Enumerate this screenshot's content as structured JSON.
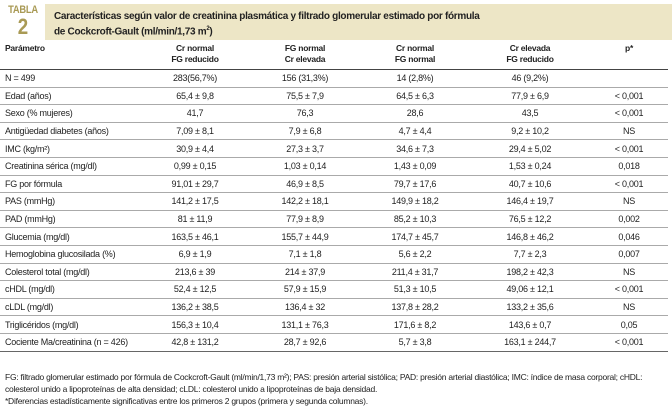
{
  "table_label": {
    "word": "TABLA",
    "number": "2"
  },
  "title": {
    "line1": "Características según valor de creatinina plasmática y filtrado glomerular estimado por fórmula",
    "line2": "de Cockcroft-Gault (ml/min/1,73 m",
    "line2_sup": "2",
    "line2_end": ")"
  },
  "columns": [
    {
      "l1": "Parámetro",
      "l2": ""
    },
    {
      "l1": "Cr normal",
      "l2": "FG reducido"
    },
    {
      "l1": "FG normal",
      "l2": "Cr elevada"
    },
    {
      "l1": "Cr normal",
      "l2": "FG normal"
    },
    {
      "l1": "Cr elevada",
      "l2": "FG reducido"
    },
    {
      "l1": "p*",
      "l2": ""
    }
  ],
  "rows": [
    [
      "N  = 499",
      "283(56,7%)",
      "156 (31,3%)",
      "14 (2,8%)",
      "46 (9,2%)",
      ""
    ],
    [
      "Edad (años)",
      "65,4 ± 9,8",
      "75,5 ± 7,9",
      "64,5 ± 6,3",
      "77,9 ± 6,9",
      "< 0,001"
    ],
    [
      "Sexo (% mujeres)",
      "41,7",
      "76,3",
      "28,6",
      "43,5",
      "< 0,001"
    ],
    [
      "Antigüedad diabetes (años)",
      "7,09 ± 8,1",
      "7,9 ± 6,8",
      "4,7 ± 4,4",
      "9,2 ± 10,2",
      "NS"
    ],
    [
      "IMC (kg/m²)",
      "30,9 ± 4,4",
      "27,3 ± 3,7",
      "34,6 ± 7,3",
      "29,4 ± 5,02",
      "< 0,001"
    ],
    [
      "Creatinina sérica (mg/dl)",
      "0,99 ± 0,15",
      "1,03 ± 0,14",
      "1,43 ± 0,09",
      "1,53 ± 0,24",
      "0,018"
    ],
    [
      "FG por fórmula",
      "91,01 ± 29,7",
      "46,9 ± 8,5",
      "79,7 ± 17,6",
      "40,7 ± 10,6",
      "< 0,001"
    ],
    [
      "PAS (mmHg)",
      "141,2 ± 17,5",
      "142,2 ± 18,1",
      "149,9 ± 18,2",
      "146,4 ± 19,7",
      "NS"
    ],
    [
      "PAD (mmHg)",
      "81 ± 11,9",
      "77,9 ± 8,9",
      "85,2 ± 10,3",
      "76,5 ± 12,2",
      "0,002"
    ],
    [
      "Glucemia (mg/dl)",
      "163,5 ± 46,1",
      "155,7 ± 44,9",
      "174,7 ± 45,7",
      "146,8 ± 46,2",
      "0,046"
    ],
    [
      "Hemoglobina glucosilada (%)",
      "6,9 ± 1,9",
      "7,1 ± 1,8",
      "5,6 ± 2,2",
      "7,7 ± 2,3",
      "0,007"
    ],
    [
      "Colesterol total (mg/dl)",
      "213,6 ± 39",
      "214 ± 37,9",
      "211,4 ± 31,7",
      "198,2 ± 42,3",
      "NS"
    ],
    [
      "cHDL (mg/dl)",
      "52,4 ± 12,5",
      "57,9 ± 15,9",
      "51,3 ± 10,5",
      "49,06 ± 12,1",
      "< 0,001"
    ],
    [
      "cLDL (mg/dl)",
      "136,2 ± 38,5",
      "136,4 ± 32",
      "137,8 ± 28,2",
      "133,2 ± 35,6",
      "NS"
    ],
    [
      "Triglicéridos (mg/dl)",
      "156,3 ± 10,4",
      "131,1 ± 76,3",
      "171,6 ± 8,2",
      "143,6 ± 0,7",
      "0,05"
    ],
    [
      "Cociente Ma/creatinina (n = 426)",
      "42,8 ± 131,2",
      "28,7 ± 92,6",
      "5,7 ± 3,8",
      "163,1 ± 244,7",
      "< 0,001"
    ]
  ],
  "footnotes": [
    "FG: filtrado glomerular estimado por fórmula de Cockcroft-Gault (ml/min/1,73 m²); PAS: presión arterial sistólica; PAD: presión arterial diastólica; IMC: índice de masa corporal; cHDL: colesterol unido a lipoproteínas de alta densidad; cLDL: colesterol unido a lipoproteínas de baja densidad.",
    "*Diferencias estadísticamente significativas entre los primeros 2 grupos (primera y segunda columnas)."
  ],
  "colors": {
    "accent": "#a99a55",
    "band": "#ede6c6"
  }
}
